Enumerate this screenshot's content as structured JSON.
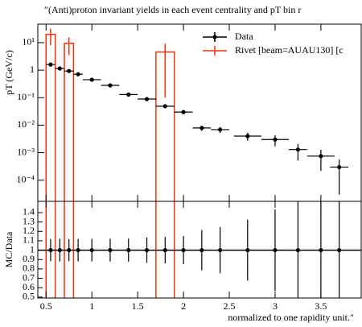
{
  "chart_data": {
    "type": "rivet",
    "title": "″(Anti)proton invariant yields in each event centrality and pT bin r",
    "ylabel": "pT (GeV/c)",
    "ratio_ylabel": "MC/Data",
    "xlabel": "normalized to one rapidity unit.″",
    "xlim": [
      0.41,
      3.94
    ],
    "xticks": [
      0.5,
      1,
      1.5,
      2,
      2.5,
      3,
      3.5
    ],
    "ylim": [
      1.7e-05,
      47
    ],
    "log_y": true,
    "yticks": [
      {
        "value": 10,
        "label": "10¹"
      },
      1,
      {
        "value": 0.1,
        "label": "10⁻¹"
      },
      {
        "value": 0.01,
        "label": "10⁻²"
      },
      {
        "value": 0.001,
        "label": "10⁻³"
      },
      {
        "value": 0.0001,
        "label": "10⁻⁴"
      }
    ],
    "ratio_ylim": [
      0.49,
      1.52
    ],
    "ratio_yticks": [
      0.5,
      0.6,
      0.7,
      0.8,
      0.9,
      1,
      1.1,
      1.2,
      1.3,
      1.4
    ],
    "series": [
      {
        "name": "Data",
        "color": "#000000",
        "x": [
          0.55,
          0.65,
          0.75,
          0.85,
          1.0,
          1.2,
          1.4,
          1.6,
          1.8,
          2.0,
          2.2,
          2.4,
          2.7,
          3.0,
          3.25,
          3.5,
          3.7
        ],
        "xerr": [
          0.05,
          0.05,
          0.05,
          0.05,
          0.1,
          0.1,
          0.1,
          0.1,
          0.1,
          0.1,
          0.1,
          0.1,
          0.15,
          0.15,
          0.1,
          0.15,
          0.1
        ],
        "values": [
          1.6,
          1.15,
          0.93,
          0.71,
          0.45,
          0.28,
          0.13,
          0.089,
          0.049,
          0.03,
          0.0079,
          0.0069,
          0.004,
          0.003,
          0.0013,
          0.00075,
          0.0003
        ],
        "yerr": [
          0.19,
          0.14,
          0.11,
          0.085,
          0.054,
          0.034,
          0.016,
          0.012,
          0.0069,
          0.0045,
          0.0017,
          0.0017,
          0.0013,
          0.0013,
          0.00078,
          0.00053,
          0.00027
        ]
      },
      {
        "name": "Rivet [beam=AUAU130] [c",
        "color": "#ee3311",
        "bins": [
          [
            0.5,
            0.6
          ],
          [
            0.7,
            0.8
          ],
          [
            1.7,
            1.9
          ]
        ],
        "values": [
          20,
          9.5,
          4.6
        ],
        "yerr": [
          12,
          6,
          4.5
        ]
      }
    ]
  }
}
